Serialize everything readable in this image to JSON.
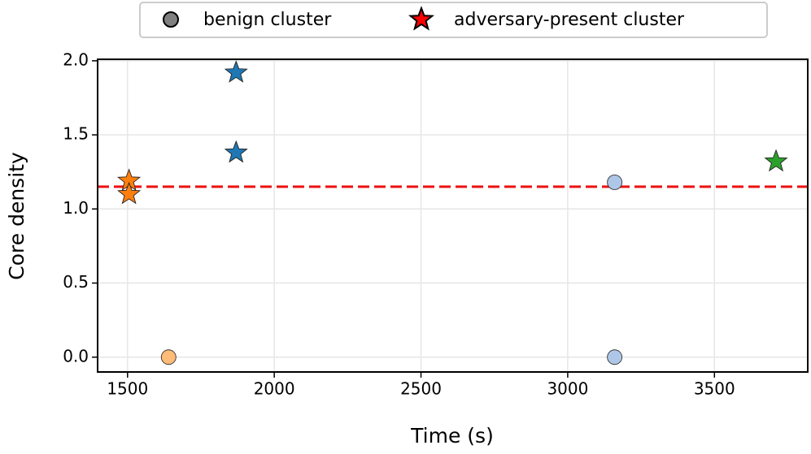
{
  "chart_data": {
    "type": "scatter",
    "xlabel": "Time (s)",
    "ylabel": "Core density",
    "xlim": [
      1398,
      3818
    ],
    "ylim": [
      -0.1,
      2.01
    ],
    "xticks": [
      1500,
      2000,
      2500,
      3000,
      3500
    ],
    "yticks": [
      {
        "value": 0,
        "label": "0.0"
      },
      {
        "value": 0.5,
        "label": "0.5"
      },
      {
        "value": 1,
        "label": "1.0"
      },
      {
        "value": 1.5,
        "label": "1.5"
      },
      {
        "value": 2,
        "label": "2.0"
      }
    ],
    "grid": true,
    "legend": "top-center",
    "threshold": {
      "value": 1.15,
      "color": "#ee1111"
    },
    "series": [
      {
        "name": "benign cluster",
        "marker": "circle",
        "color": "#808080",
        "x": [
          1640,
          3160,
          3160
        ],
        "y": [
          0,
          1.18,
          0
        ],
        "point_colors": [
          "#ffbb78",
          "#aec7e8",
          "#aec7e8"
        ]
      },
      {
        "name": "adversary-present cluster",
        "marker": "star",
        "color": "#ff0000",
        "x": [
          1505,
          1505,
          1870,
          1870,
          3710
        ],
        "y": [
          1.19,
          1.1,
          1.92,
          1.38,
          1.32
        ],
        "point_colors": [
          "#ff7f0e",
          "#ff7f0e",
          "#1f77b4",
          "#1f77b4",
          "#2ca02c"
        ]
      }
    ]
  }
}
